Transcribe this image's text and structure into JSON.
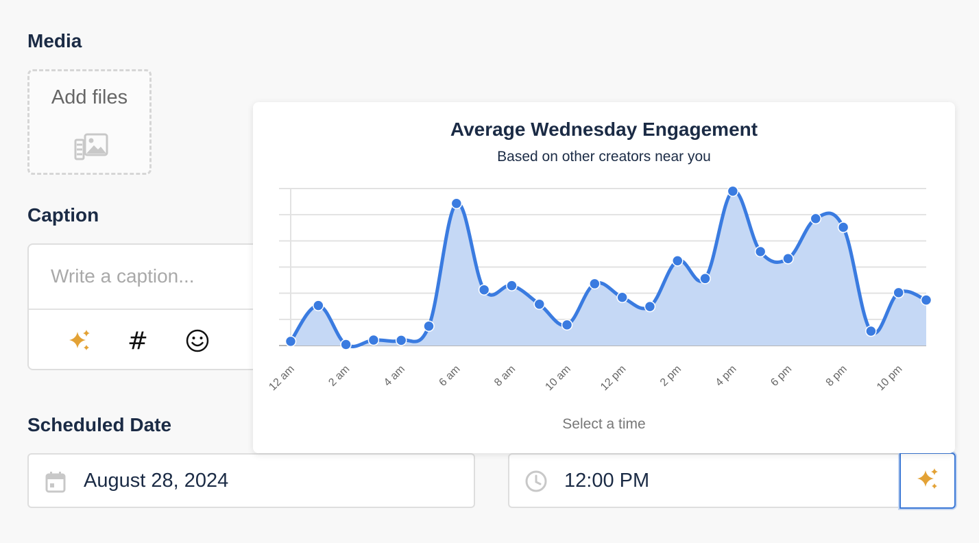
{
  "media": {
    "label": "Media",
    "add_files_label": "Add files",
    "icon": "image-gallery-icon"
  },
  "caption": {
    "label": "Caption",
    "placeholder": "Write a caption...",
    "value": "",
    "tools": [
      {
        "name": "ai-sparkle-icon",
        "color": "#e3a235"
      },
      {
        "name": "hashtag-icon",
        "text": "#"
      },
      {
        "name": "emoji-icon"
      }
    ]
  },
  "scheduled": {
    "label": "Scheduled Date",
    "date": "August 28, 2024",
    "time": "12:00 PM",
    "date_icon": "calendar-icon",
    "time_icon": "clock-icon",
    "ai_icon": "ai-sparkle-icon"
  },
  "popover": {
    "title": "Average Wednesday Engagement",
    "subtitle": "Based on other creators near you",
    "footer": "Select a time"
  },
  "chart_data": {
    "type": "area",
    "title": "Average Wednesday Engagement",
    "subtitle": "Based on other creators near you",
    "xlabel": "",
    "ylabel": "",
    "x": [
      "12 am",
      "1 am",
      "2 am",
      "3 am",
      "4 am",
      "5 am",
      "6 am",
      "7 am",
      "8 am",
      "9 am",
      "10 am",
      "11 am",
      "12 pm",
      "1 pm",
      "2 pm",
      "3 pm",
      "4 pm",
      "5 pm",
      "6 pm",
      "7 pm",
      "8 pm",
      "9 pm",
      "10 pm",
      "11 pm"
    ],
    "x_tick_labels": [
      "12 am",
      "2 am",
      "4 am",
      "6 am",
      "8 am",
      "10 am",
      "12 pm",
      "2 pm",
      "4 pm",
      "6 pm",
      "8 pm",
      "10 pm"
    ],
    "values": [
      1.6,
      15.3,
      0.4,
      2.1,
      2.0,
      7.4,
      54.3,
      21.3,
      22.9,
      15.8,
      7.9,
      23.6,
      18.4,
      14.9,
      32.4,
      25.6,
      59.0,
      35.9,
      33.2,
      48.5,
      45.2,
      5.5,
      20.2,
      17.4
    ],
    "ylim": [
      0,
      60
    ],
    "grid": true,
    "colors": {
      "line": "#3a7be0",
      "fill": "#c5d8f5"
    }
  }
}
